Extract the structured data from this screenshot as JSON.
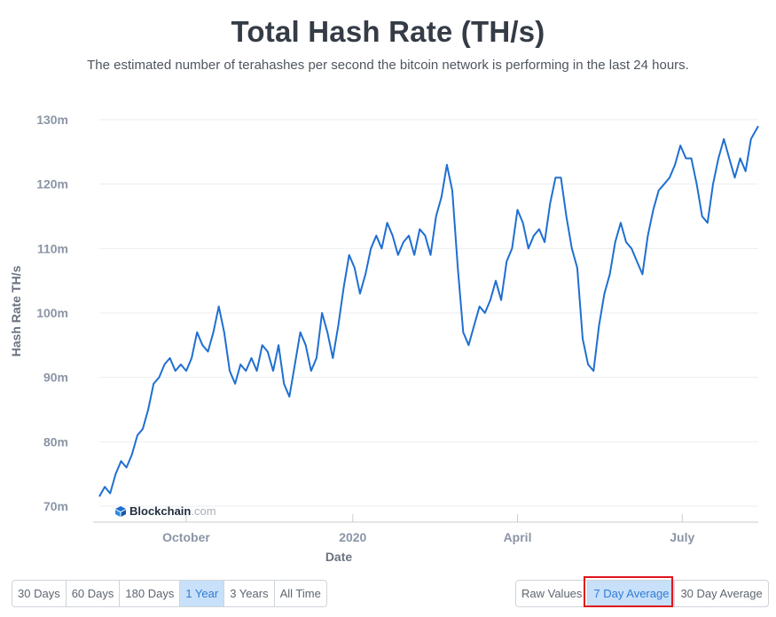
{
  "page": {
    "title": "Total Hash Rate (TH/s)",
    "subtitle": "The estimated number of terahashes per second the bitcoin network is performing in the last 24 hours."
  },
  "brand": {
    "name": "Blockchain",
    "suffix": ".com"
  },
  "range_buttons": [
    {
      "label": "30 Days",
      "active": false
    },
    {
      "label": "60 Days",
      "active": false
    },
    {
      "label": "180 Days",
      "active": false
    },
    {
      "label": "1 Year",
      "active": true
    },
    {
      "label": "3 Years",
      "active": false
    },
    {
      "label": "All Time",
      "active": false
    }
  ],
  "average_buttons": [
    {
      "label": "Raw Values",
      "active": false
    },
    {
      "label": "7 Day Average",
      "active": true
    },
    {
      "label": "30 Day Average",
      "active": false
    }
  ],
  "colors": {
    "line": "#1f6fd1",
    "active_bg": "#c8e0f9",
    "highlight": "#e0141e"
  },
  "chart_data": {
    "type": "line",
    "title": "Total Hash Rate (TH/s)",
    "xlabel": "Date",
    "ylabel": "Hash Rate TH/s",
    "ylim": [
      70,
      130
    ],
    "yticks": [
      70,
      80,
      90,
      100,
      110,
      120,
      130
    ],
    "ytick_labels": [
      "70m",
      "80m",
      "90m",
      "100m",
      "110m",
      "120m",
      "130m"
    ],
    "xlim": [
      "2019-08-14",
      "2020-08-12"
    ],
    "xticks": [
      {
        "date": "2019-10-01",
        "label": "October"
      },
      {
        "date": "2020-01-01",
        "label": "2020"
      },
      {
        "date": "2020-04-01",
        "label": "April"
      },
      {
        "date": "2020-07-01",
        "label": "July"
      }
    ],
    "grid": true,
    "series": [
      {
        "x": [
          "2019-08-14",
          "2019-08-17",
          "2019-08-20",
          "2019-08-23",
          "2019-08-26",
          "2019-08-29",
          "2019-09-01",
          "2019-09-04",
          "2019-09-07",
          "2019-09-10",
          "2019-09-13",
          "2019-09-16",
          "2019-09-19",
          "2019-09-22",
          "2019-09-25",
          "2019-09-28",
          "2019-10-01",
          "2019-10-04",
          "2019-10-07",
          "2019-10-10",
          "2019-10-13",
          "2019-10-16",
          "2019-10-19",
          "2019-10-22",
          "2019-10-25",
          "2019-10-28",
          "2019-10-31",
          "2019-11-03",
          "2019-11-06",
          "2019-11-09",
          "2019-11-12",
          "2019-11-15",
          "2019-11-18",
          "2019-11-21",
          "2019-11-24",
          "2019-11-27",
          "2019-11-30",
          "2019-12-03",
          "2019-12-06",
          "2019-12-09",
          "2019-12-12",
          "2019-12-15",
          "2019-12-18",
          "2019-12-21",
          "2019-12-24",
          "2019-12-27",
          "2019-12-30",
          "2020-01-02",
          "2020-01-05",
          "2020-01-08",
          "2020-01-11",
          "2020-01-14",
          "2020-01-17",
          "2020-01-20",
          "2020-01-23",
          "2020-01-26",
          "2020-01-29",
          "2020-02-01",
          "2020-02-04",
          "2020-02-07",
          "2020-02-10",
          "2020-02-13",
          "2020-02-16",
          "2020-02-19",
          "2020-02-22",
          "2020-02-25",
          "2020-02-28",
          "2020-03-02",
          "2020-03-05",
          "2020-03-08",
          "2020-03-11",
          "2020-03-14",
          "2020-03-17",
          "2020-03-20",
          "2020-03-23",
          "2020-03-26",
          "2020-03-29",
          "2020-04-01",
          "2020-04-04",
          "2020-04-07",
          "2020-04-10",
          "2020-04-13",
          "2020-04-16",
          "2020-04-19",
          "2020-04-22",
          "2020-04-25",
          "2020-04-28",
          "2020-05-01",
          "2020-05-04",
          "2020-05-07",
          "2020-05-10",
          "2020-05-13",
          "2020-05-16",
          "2020-05-19",
          "2020-05-22",
          "2020-05-25",
          "2020-05-28",
          "2020-05-31",
          "2020-06-03",
          "2020-06-06",
          "2020-06-09",
          "2020-06-12",
          "2020-06-15",
          "2020-06-18",
          "2020-06-21",
          "2020-06-24",
          "2020-06-27",
          "2020-06-30",
          "2020-07-03",
          "2020-07-06",
          "2020-07-09",
          "2020-07-12",
          "2020-07-15",
          "2020-07-18",
          "2020-07-21",
          "2020-07-24",
          "2020-07-27",
          "2020-07-30",
          "2020-08-02",
          "2020-08-05",
          "2020-08-08",
          "2020-08-12"
        ],
        "values": [
          71.5,
          73,
          72,
          75,
          77,
          76,
          78,
          81,
          82,
          85,
          89,
          90,
          92,
          93,
          91,
          92,
          91,
          93,
          97,
          95,
          94,
          97,
          101,
          97,
          91,
          89,
          92,
          91,
          93,
          91,
          95,
          94,
          91,
          95,
          89,
          87,
          92,
          97,
          95,
          91,
          93,
          100,
          97,
          93,
          98,
          104,
          109,
          107,
          103,
          106,
          110,
          112,
          110,
          114,
          112,
          109,
          111,
          112,
          109,
          113,
          112,
          109,
          115,
          118,
          123,
          119,
          107,
          97,
          95,
          98,
          101,
          100,
          102,
          105,
          102,
          108,
          110,
          116,
          114,
          110,
          112,
          113,
          111,
          117,
          121,
          121,
          115,
          110,
          107,
          96,
          92,
          91,
          98,
          103,
          106,
          111,
          114,
          111,
          110,
          108,
          106,
          112,
          116,
          119,
          120,
          121,
          123,
          126,
          124,
          124,
          120,
          115,
          114,
          120,
          124,
          127,
          124,
          121,
          124,
          122,
          127,
          129
        ]
      }
    ]
  }
}
